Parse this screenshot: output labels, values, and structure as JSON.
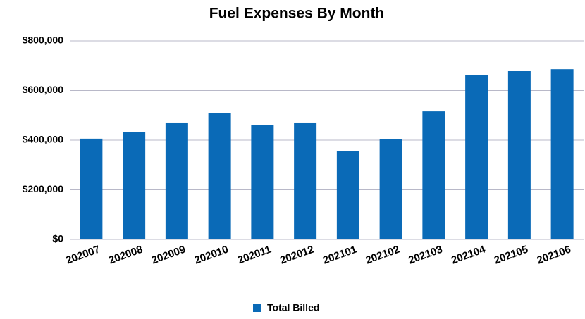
{
  "chart_data": {
    "type": "bar",
    "title": "Fuel Expenses By Month",
    "categories": [
      "202007",
      "202008",
      "202009",
      "202010",
      "202011",
      "202012",
      "202101",
      "202102",
      "202103",
      "202104",
      "202105",
      "202106"
    ],
    "series": [
      {
        "name": "Total Billed",
        "color": "#0a6ab7",
        "values": [
          406000,
          434000,
          471000,
          508000,
          462000,
          471000,
          357000,
          403000,
          516000,
          661000,
          678000,
          686000
        ]
      }
    ],
    "ylim": [
      0,
      800000
    ],
    "yticks": [
      {
        "value": 0,
        "label": "$0"
      },
      {
        "value": 200000,
        "label": "$200,000"
      },
      {
        "value": 400000,
        "label": "$400,000"
      },
      {
        "value": 600000,
        "label": "$600,000"
      },
      {
        "value": 800000,
        "label": "$800,000"
      }
    ],
    "grid": true,
    "legend": "bottom"
  }
}
